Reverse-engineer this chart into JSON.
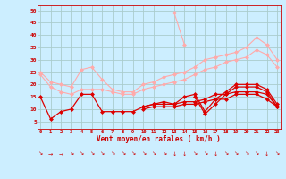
{
  "title": "",
  "xlabel": "Vent moyen/en rafales ( km/h )",
  "ylabel": "",
  "background_color": "#cceeff",
  "grid_color": "#aacccc",
  "x": [
    0,
    1,
    2,
    3,
    4,
    5,
    6,
    7,
    8,
    9,
    10,
    11,
    12,
    13,
    14,
    15,
    16,
    17,
    18,
    19,
    20,
    21,
    22,
    23
  ],
  "xlim": [
    -0.3,
    23.3
  ],
  "ylim": [
    2,
    52
  ],
  "yticks": [
    5,
    10,
    15,
    20,
    25,
    30,
    35,
    40,
    45,
    50
  ],
  "series": [
    {
      "color": "#ffaaaa",
      "values": [
        25,
        21,
        20,
        19,
        26,
        27,
        22,
        18,
        17,
        17,
        20,
        21,
        23,
        24,
        25,
        27,
        30,
        31,
        32,
        33,
        35,
        39,
        36,
        30
      ],
      "marker": "D",
      "linewidth": 0.8,
      "markersize": 2.0
    },
    {
      "color": "#ffaaaa",
      "values": [
        24,
        19,
        17,
        16,
        18,
        18,
        18,
        17,
        16,
        16,
        18,
        19,
        20,
        21,
        22,
        24,
        26,
        27,
        29,
        30,
        31,
        34,
        32,
        27
      ],
      "marker": "D",
      "linewidth": 0.8,
      "markersize": 2.0
    },
    {
      "color": "#ffaaaa",
      "values": [
        null,
        null,
        null,
        null,
        null,
        null,
        null,
        null,
        null,
        null,
        null,
        null,
        null,
        49,
        36,
        null,
        null,
        null,
        null,
        null,
        null,
        null,
        null,
        null
      ],
      "marker": "D",
      "linewidth": 0.8,
      "markersize": 2.0
    },
    {
      "color": "#dd0000",
      "values": [
        15,
        6,
        9,
        10,
        16,
        16,
        9,
        9,
        9,
        9,
        11,
        12,
        13,
        12,
        15,
        16,
        9,
        14,
        17,
        20,
        20,
        20,
        18,
        12
      ],
      "marker": "D",
      "linewidth": 0.9,
      "markersize": 2.0
    },
    {
      "color": "#dd0000",
      "values": [
        null,
        null,
        null,
        null,
        null,
        null,
        null,
        null,
        null,
        null,
        11,
        12,
        12,
        12,
        13,
        13,
        14,
        16,
        16,
        17,
        17,
        17,
        16,
        11
      ],
      "marker": "D",
      "linewidth": 0.9,
      "markersize": 2.0
    },
    {
      "color": "#dd0000",
      "values": [
        null,
        null,
        null,
        null,
        null,
        null,
        null,
        null,
        null,
        null,
        10,
        11,
        11,
        11,
        12,
        12,
        13,
        14,
        14,
        16,
        16,
        16,
        14,
        11
      ],
      "marker": "D",
      "linewidth": 0.9,
      "markersize": 2.0
    },
    {
      "color": "#dd0000",
      "values": [
        null,
        null,
        null,
        null,
        null,
        null,
        null,
        null,
        null,
        null,
        null,
        null,
        null,
        null,
        null,
        15,
        8,
        12,
        16,
        19,
        19,
        19,
        17,
        11
      ],
      "marker": "D",
      "linewidth": 0.9,
      "markersize": 2.0
    }
  ],
  "wind_direction_chars": [
    "↘",
    "→",
    "→",
    "↘",
    "↘",
    "↘",
    "↘",
    "↘",
    "↘",
    "↘",
    "↘",
    "↘",
    "↘",
    "↓",
    "↓",
    "↘",
    "↘",
    "↓",
    "↘",
    "↘",
    "↘",
    "↘",
    "↓",
    "↘"
  ]
}
